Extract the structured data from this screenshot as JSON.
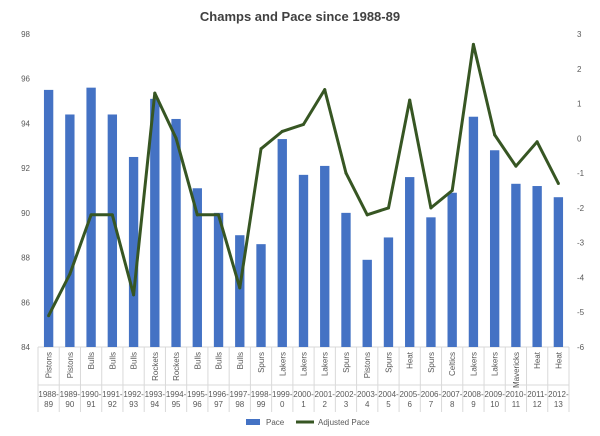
{
  "chart_data": {
    "type": "bar",
    "title": "Champs and Pace since 1988-89",
    "seasons": [
      "1988-89",
      "1989-90",
      "1990-91",
      "1991-92",
      "1992-93",
      "1993-94",
      "1994-95",
      "1995-96",
      "1996-97",
      "1997-98",
      "1998-99",
      "1999-0",
      "2000-1",
      "2001-2",
      "2002-3",
      "2003-4",
      "2004-5",
      "2005-6",
      "2006-7",
      "2007-8",
      "2008-9",
      "2009-10",
      "2010-11",
      "2011-12",
      "2012-13"
    ],
    "seasons_split": [
      [
        "1988-",
        "89"
      ],
      [
        "1989-",
        "90"
      ],
      [
        "1990-",
        "91"
      ],
      [
        "1991-",
        "92"
      ],
      [
        "1992-",
        "93"
      ],
      [
        "1993-",
        "94"
      ],
      [
        "1994-",
        "95"
      ],
      [
        "1995-",
        "96"
      ],
      [
        "1996-",
        "97"
      ],
      [
        "1997-",
        "98"
      ],
      [
        "1998-",
        "99"
      ],
      [
        "1999-",
        "0"
      ],
      [
        "2000-",
        "1"
      ],
      [
        "2001-",
        "2"
      ],
      [
        "2002-",
        "3"
      ],
      [
        "2003-",
        "4"
      ],
      [
        "2004-",
        "5"
      ],
      [
        "2005-",
        "6"
      ],
      [
        "2006-",
        "7"
      ],
      [
        "2007-",
        "8"
      ],
      [
        "2008-",
        "9"
      ],
      [
        "2009-",
        "10"
      ],
      [
        "2010-",
        "11"
      ],
      [
        "2011-",
        "12"
      ],
      [
        "2012-",
        "13"
      ]
    ],
    "teams": [
      "Pistons",
      "Pistons",
      "Bulls",
      "Bulls",
      "Bulls",
      "Rockets",
      "Rockets",
      "Bulls",
      "Bulls",
      "Bulls",
      "Spurs",
      "Lakers",
      "Lakers",
      "Lakers",
      "Spurs",
      "Pistons",
      "Spurs",
      "Heat",
      "Spurs",
      "Celtics",
      "Lakers",
      "Lakers",
      "Mavericks",
      "Heat",
      "Heat"
    ],
    "series": [
      {
        "name": "Pace",
        "axis": "left",
        "kind": "bar",
        "color": "#4472C4",
        "values": [
          95.5,
          94.4,
          95.6,
          94.4,
          92.5,
          95.1,
          94.2,
          91.1,
          90.0,
          89.0,
          88.6,
          93.3,
          91.7,
          92.1,
          90.0,
          87.9,
          88.9,
          91.6,
          89.8,
          90.9,
          94.3,
          92.8,
          91.3,
          91.2,
          90.7
        ]
      },
      {
        "name": "Adjusted Pace",
        "axis": "right",
        "kind": "line",
        "color": "#375623",
        "values": [
          -5.1,
          -3.9,
          -2.2,
          -2.2,
          -4.5,
          1.3,
          0.0,
          -2.2,
          -2.2,
          -4.3,
          -0.3,
          0.2,
          0.4,
          1.4,
          -1.0,
          -2.2,
          -2.0,
          1.1,
          -2.0,
          -1.5,
          2.7,
          0.1,
          -0.8,
          -0.1,
          -1.3
        ]
      }
    ],
    "y_left": {
      "min": 84,
      "max": 98,
      "ticks": [
        "84",
        "86",
        "88",
        "90",
        "92",
        "94",
        "96",
        "98"
      ]
    },
    "y_right": {
      "min": -6,
      "max": 3,
      "ticks": [
        "-6",
        "-5",
        "-4",
        "-3",
        "-2",
        "-1",
        "0",
        "1",
        "2",
        "3"
      ]
    },
    "grid": false,
    "legend_position": "bottom"
  }
}
